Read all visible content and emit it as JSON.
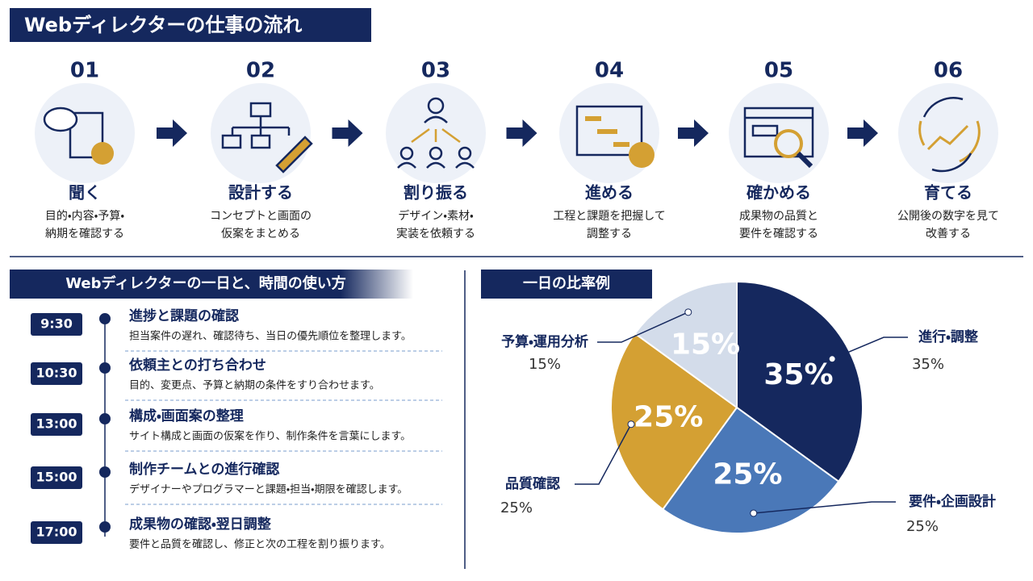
{
  "header": {
    "title": "Webディレクターの仕事の流れ"
  },
  "steps": [
    {
      "number": "01",
      "title": "聞く",
      "lines": [
        "目的・内容・予算・",
        "納期を確認する"
      ]
    },
    {
      "number": "02",
      "title": "設計する",
      "lines": [
        "コンセプトと画面の",
        "仮案をまとめる"
      ]
    },
    {
      "number": "03",
      "title": "割り振る",
      "lines": [
        "デザイン・素材・",
        "実装を依頼する"
      ]
    },
    {
      "number": "04",
      "title": "進める",
      "lines": [
        "工程と課題を把握して",
        "調整する"
      ]
    },
    {
      "number": "05",
      "title": "確かめる",
      "lines": [
        "成果物の品質と",
        "要件を確認する"
      ]
    },
    {
      "number": "06",
      "title": "育てる",
      "lines": [
        "公開後の数字を見て",
        "改善する"
      ]
    }
  ],
  "timeline": {
    "title": "Webディレクターの一日と、時間の使い方",
    "items": [
      {
        "time": "9:30",
        "title": "進捗と課題の確認",
        "desc": "担当案件の遅れ、確認待ち、当日の優先順位を整理します。"
      },
      {
        "time": "10:30",
        "title": "依頼主との打ち合わせ",
        "desc": "目的、変更点、予算と納期の条件をすり合わせます。"
      },
      {
        "time": "13:00",
        "title": "構成・画面案の整理",
        "desc": "サイト構成と画面の仮案を作り、制作条件を言葉にします。"
      },
      {
        "time": "15:00",
        "title": "制作チームとの進行確認",
        "desc": "デザイナーやプログラマーと課題・担当・期限を確認します。"
      },
      {
        "time": "17:00",
        "title": "成果物の確認・翌日調整",
        "desc": "要件と品質を確認し、修正と次の工程を割り振ります。"
      }
    ]
  },
  "chart_data": {
    "type": "pie",
    "title": "一日の比率例",
    "categories": [
      "進行・調整",
      "要件・企画設計",
      "品質確認",
      "予算・運用分析"
    ],
    "values": [
      35,
      25,
      25,
      15
    ],
    "value_labels": [
      "35%",
      "25%",
      "25%",
      "15%"
    ],
    "colors": [
      "#15285e",
      "#4a78b8",
      "#d4a033",
      "#d3dcea"
    ]
  }
}
